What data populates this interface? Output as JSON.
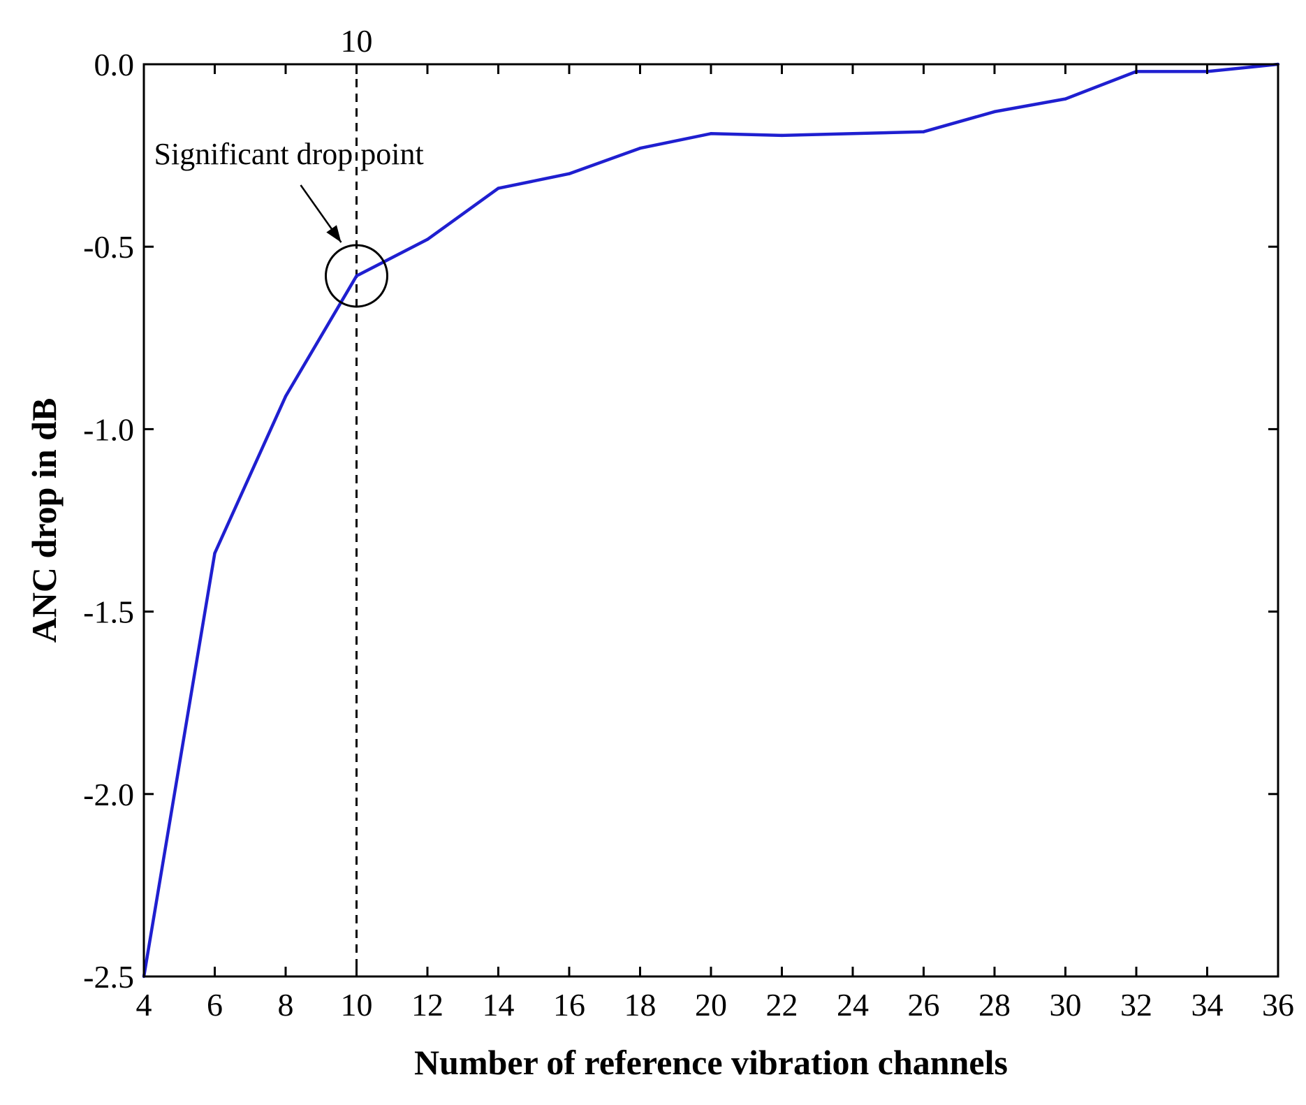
{
  "chart_data": {
    "type": "line",
    "title": "",
    "xlabel": "Number of reference vibration channels",
    "ylabel": "ANC drop in dB",
    "xlim": [
      4,
      36
    ],
    "ylim": [
      -2.5,
      0.0
    ],
    "xticks": [
      4,
      6,
      8,
      10,
      12,
      14,
      16,
      18,
      20,
      22,
      24,
      26,
      28,
      30,
      32,
      34,
      36
    ],
    "xtick_labels": [
      "4",
      "6",
      "8",
      "10",
      "12",
      "14",
      "16",
      "18",
      "20",
      "22",
      "24",
      "26",
      "28",
      "30",
      "32",
      "34",
      "36"
    ],
    "yticks": [
      0.0,
      -0.5,
      -1.0,
      -1.5,
      -2.0,
      -2.5
    ],
    "ytick_labels": [
      "0.0",
      "-0.5",
      "-1.0",
      "-1.5",
      "-2.0",
      "-2.5"
    ],
    "grid": false,
    "series": [
      {
        "color": "#1f1fd0",
        "x": [
          4,
          6,
          8,
          10,
          12,
          14,
          16,
          18,
          20,
          22,
          24,
          26,
          28,
          30,
          32,
          34,
          36
        ],
        "y": [
          -2.5,
          -1.34,
          -0.91,
          -0.58,
          -0.48,
          -0.34,
          -0.3,
          -0.23,
          -0.19,
          -0.195,
          -0.19,
          -0.185,
          -0.13,
          -0.095,
          -0.02,
          -0.02,
          0.0
        ]
      }
    ],
    "annotations": {
      "vline_x": 10,
      "vline_label": "10",
      "marker_point": {
        "x": 10,
        "y": -0.58
      },
      "text": "Significant drop point"
    }
  }
}
